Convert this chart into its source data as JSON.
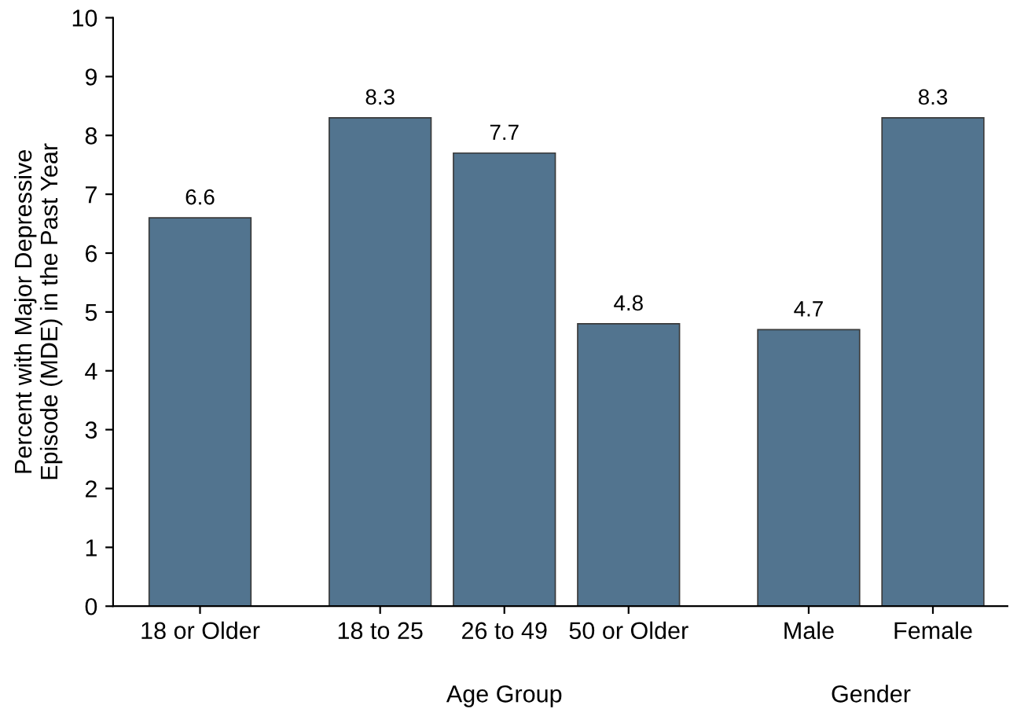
{
  "chart_data": {
    "type": "bar",
    "ylabel": "Percent with Major Depressive\nEpisode (MDE) in the Past Year",
    "categories": [
      "18 or Older",
      "18 to 25",
      "26 to 49",
      "50 or Older",
      "Male",
      "Female"
    ],
    "values": [
      6.6,
      8.3,
      7.7,
      4.8,
      4.7,
      8.3
    ],
    "color": "#52748f",
    "ylim": [
      0,
      10
    ],
    "yticks": [
      0,
      1,
      2,
      3,
      4,
      5,
      6,
      7,
      8,
      9,
      10
    ],
    "grid": false,
    "data_labels": true,
    "annotations": [
      "Age Group",
      "Gender"
    ]
  }
}
